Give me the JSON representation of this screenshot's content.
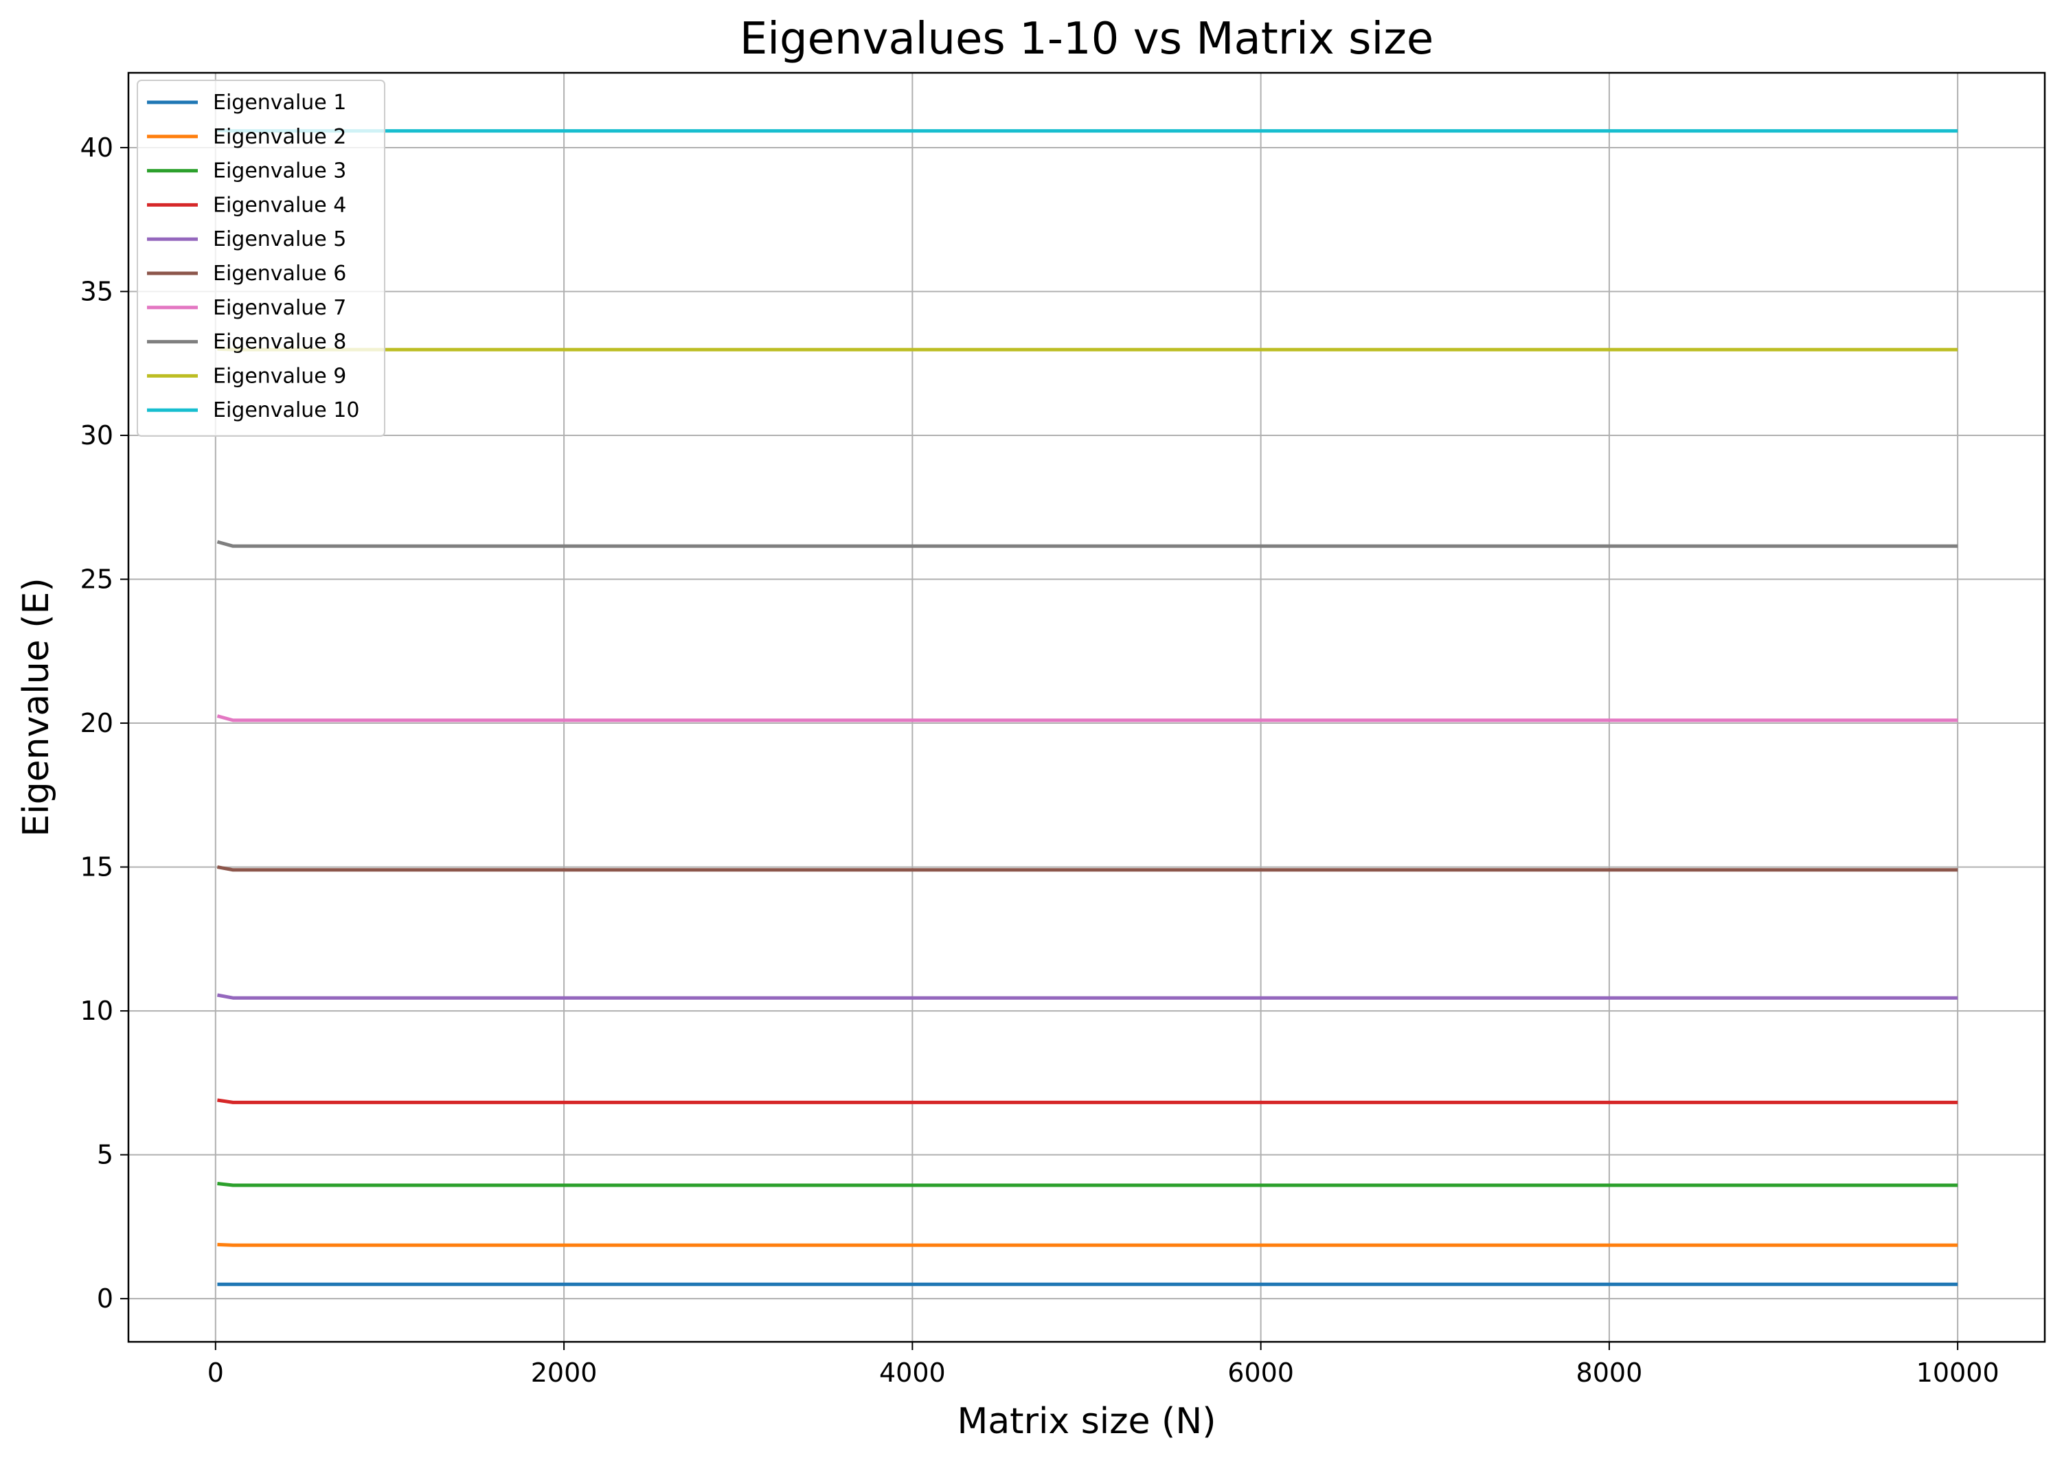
{
  "chart_data": {
    "type": "line",
    "title": "Eigenvalues 1-10 vs Matrix size",
    "xlabel": "Matrix size (N)",
    "ylabel": "Eigenvalue (E)",
    "xlim": [
      -500,
      10500
    ],
    "ylim": [
      -1.5,
      42.6
    ],
    "x_ticks": [
      0,
      2000,
      4000,
      6000,
      8000,
      10000
    ],
    "y_ticks": [
      0,
      5,
      10,
      15,
      20,
      25,
      30,
      35,
      40
    ],
    "grid": true,
    "legend_position": "upper-left",
    "x": [
      10,
      100,
      10000
    ],
    "series": [
      {
        "name": "Eigenvalue 1",
        "color": "#1f77b4",
        "values": [
          0.5,
          0.5,
          0.5
        ]
      },
      {
        "name": "Eigenvalue 2",
        "color": "#ff7f0e",
        "values": [
          1.88,
          1.86,
          1.86
        ]
      },
      {
        "name": "Eigenvalue 3",
        "color": "#2ca02c",
        "values": [
          4.0,
          3.94,
          3.94
        ]
      },
      {
        "name": "Eigenvalue 4",
        "color": "#d62728",
        "values": [
          6.9,
          6.82,
          6.82
        ]
      },
      {
        "name": "Eigenvalue 5",
        "color": "#9467bd",
        "values": [
          10.55,
          10.45,
          10.45
        ]
      },
      {
        "name": "Eigenvalue 6",
        "color": "#8c564b",
        "values": [
          15.0,
          14.9,
          14.9
        ]
      },
      {
        "name": "Eigenvalue 7",
        "color": "#e377c2",
        "values": [
          20.25,
          20.1,
          20.1
        ]
      },
      {
        "name": "Eigenvalue 8",
        "color": "#7f7f7f",
        "values": [
          26.3,
          26.15,
          26.15
        ]
      },
      {
        "name": "Eigenvalue 9",
        "color": "#bcbd22",
        "values": [
          33.0,
          32.98,
          32.98
        ]
      },
      {
        "name": "Eigenvalue 10",
        "color": "#17becf",
        "values": [
          40.6,
          40.58,
          40.58
        ]
      }
    ]
  }
}
